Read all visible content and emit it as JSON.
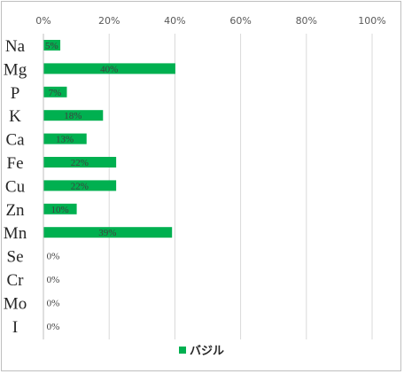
{
  "chart_data": {
    "type": "bar",
    "orientation": "horizontal",
    "categories": [
      "Na",
      "Mg",
      "P",
      "K",
      "Ca",
      "Fe",
      "Cu",
      "Zn",
      "Mn",
      "Se",
      "Cr",
      "Mo",
      "I"
    ],
    "series": [
      {
        "name": "バジル",
        "color": "#00b050",
        "values": [
          5,
          40,
          7,
          18,
          13,
          22,
          22,
          10,
          39,
          0,
          0,
          0,
          0
        ],
        "labels": [
          "5%",
          "40%",
          "7%",
          "18%",
          "13%",
          "22%",
          "22%",
          "10%",
          "39%",
          "0%",
          "0%",
          "0%",
          "0%"
        ]
      }
    ],
    "xaxis": {
      "ticks": [
        "0%",
        "20%",
        "40%",
        "60%",
        "80%",
        "100%"
      ],
      "range": [
        0,
        100
      ],
      "position": "top"
    },
    "grid": true,
    "legend": "bottom",
    "title": "",
    "xlabel": "",
    "ylabel": ""
  }
}
